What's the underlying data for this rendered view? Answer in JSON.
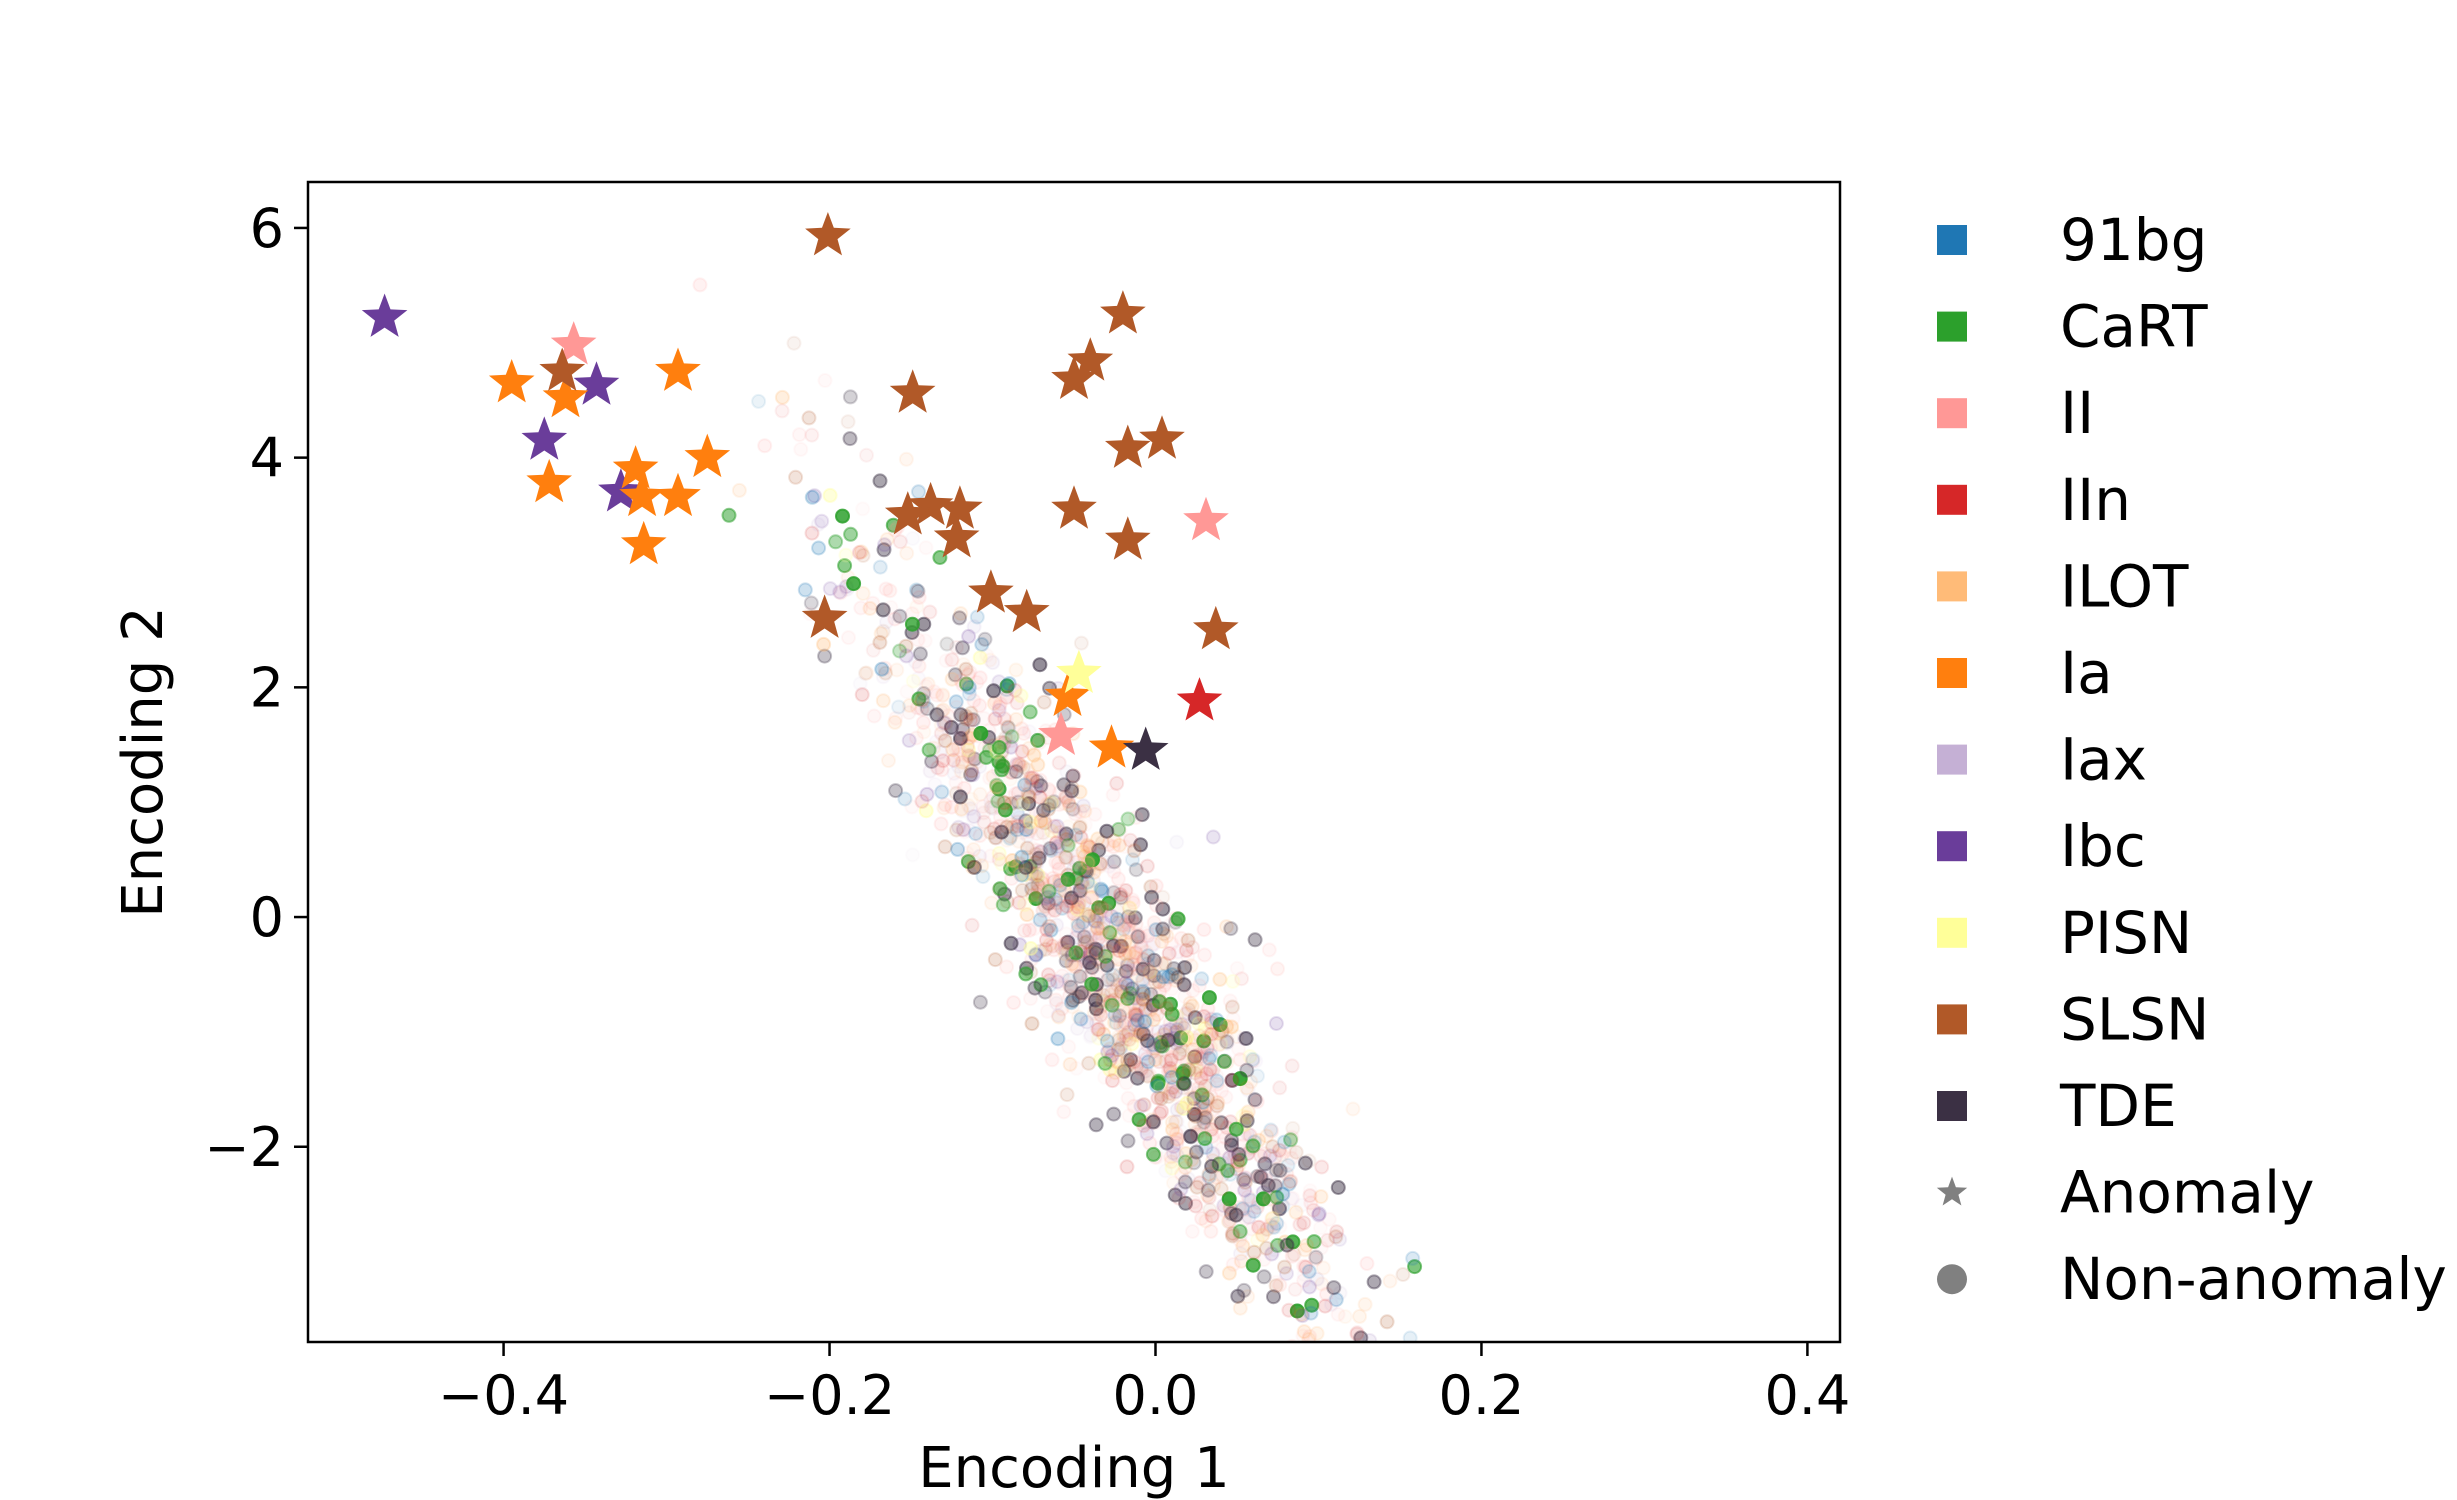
{
  "chart_data": {
    "type": "scatter",
    "title": "",
    "xlabel": "Encoding 1",
    "ylabel": "Encoding 2",
    "xlim": [
      -0.52,
      0.42
    ],
    "ylim": [
      -3.7,
      6.4
    ],
    "xticks": [
      -0.4,
      -0.2,
      0.0,
      0.2,
      0.4
    ],
    "xtick_labels": [
      "−0.4",
      "−0.2",
      "0.0",
      "0.2",
      "0.4"
    ],
    "yticks": [
      -2,
      0,
      2,
      4,
      6
    ],
    "ytick_labels": [
      "−2",
      "0",
      "2",
      "4",
      "6"
    ],
    "grid": false,
    "legend_position": "outside-right",
    "classes": [
      {
        "name": "91bg",
        "color": "#1f77b4"
      },
      {
        "name": "CaRT",
        "color": "#2ca02c"
      },
      {
        "name": "II",
        "color": "#ff9896"
      },
      {
        "name": "IIn",
        "color": "#d62728"
      },
      {
        "name": "ILOT",
        "color": "#ffbb78"
      },
      {
        "name": "Ia",
        "color": "#ff7f0e"
      },
      {
        "name": "Iax",
        "color": "#c5b0d5"
      },
      {
        "name": "Ibc",
        "color": "#6a3d9a"
      },
      {
        "name": "PISN",
        "color": "#ffff99"
      },
      {
        "name": "SLSN",
        "color": "#b15928"
      },
      {
        "name": "TDE",
        "color": "#3b3044"
      }
    ],
    "marker_legend": [
      {
        "name": "Anomaly",
        "marker": "star",
        "color": "#808080"
      },
      {
        "name": "Non-anomaly",
        "marker": "circle",
        "color": "#808080"
      }
    ],
    "anomalies": [
      {
        "class": "Ibc",
        "x": -0.473,
        "y": 5.22
      },
      {
        "class": "Ibc",
        "x": -0.343,
        "y": 4.63
      },
      {
        "class": "Ibc",
        "x": -0.375,
        "y": 4.15
      },
      {
        "class": "Ibc",
        "x": -0.328,
        "y": 3.7
      },
      {
        "class": "II",
        "x": -0.357,
        "y": 4.98
      },
      {
        "class": "II",
        "x": 0.031,
        "y": 3.45
      },
      {
        "class": "II",
        "x": -0.058,
        "y": 1.58
      },
      {
        "class": "Ia",
        "x": -0.395,
        "y": 4.65
      },
      {
        "class": "Ia",
        "x": -0.362,
        "y": 4.52
      },
      {
        "class": "Ia",
        "x": -0.293,
        "y": 4.75
      },
      {
        "class": "Ia",
        "x": -0.275,
        "y": 4.0
      },
      {
        "class": "Ia",
        "x": -0.372,
        "y": 3.78
      },
      {
        "class": "Ia",
        "x": -0.319,
        "y": 3.9
      },
      {
        "class": "Ia",
        "x": -0.315,
        "y": 3.66
      },
      {
        "class": "Ia",
        "x": -0.293,
        "y": 3.66
      },
      {
        "class": "Ia",
        "x": -0.314,
        "y": 3.24
      },
      {
        "class": "Ia",
        "x": -0.054,
        "y": 1.92
      },
      {
        "class": "Ia",
        "x": -0.027,
        "y": 1.47
      },
      {
        "class": "PISN",
        "x": -0.047,
        "y": 2.12
      },
      {
        "class": "SLSN",
        "x": -0.201,
        "y": 5.93
      },
      {
        "class": "SLSN",
        "x": -0.02,
        "y": 5.25
      },
      {
        "class": "SLSN",
        "x": -0.04,
        "y": 4.84
      },
      {
        "class": "SLSN",
        "x": -0.05,
        "y": 4.68
      },
      {
        "class": "SLSN",
        "x": -0.149,
        "y": 4.56
      },
      {
        "class": "SLSN",
        "x": 0.004,
        "y": 4.16
      },
      {
        "class": "SLSN",
        "x": -0.017,
        "y": 4.08
      },
      {
        "class": "SLSN",
        "x": -0.364,
        "y": 4.75
      },
      {
        "class": "SLSN",
        "x": -0.138,
        "y": 3.58
      },
      {
        "class": "SLSN",
        "x": -0.152,
        "y": 3.5
      },
      {
        "class": "SLSN",
        "x": -0.12,
        "y": 3.55
      },
      {
        "class": "SLSN",
        "x": -0.122,
        "y": 3.3
      },
      {
        "class": "SLSN",
        "x": -0.05,
        "y": 3.55
      },
      {
        "class": "SLSN",
        "x": -0.017,
        "y": 3.28
      },
      {
        "class": "SLSN",
        "x": -0.101,
        "y": 2.82
      },
      {
        "class": "SLSN",
        "x": -0.079,
        "y": 2.65
      },
      {
        "class": "SLSN",
        "x": -0.203,
        "y": 2.6
      },
      {
        "class": "SLSN",
        "x": 0.037,
        "y": 2.5
      },
      {
        "class": "IIn",
        "x": 0.027,
        "y": 1.88
      },
      {
        "class": "TDE",
        "x": -0.006,
        "y": 1.45
      }
    ],
    "non_anomaly_cloud": {
      "description": "dense semi-transparent circles along a diagonal band",
      "center": [
        -0.03,
        -0.3
      ],
      "classes_present": [
        "91bg",
        "CaRT",
        "II",
        "IIn",
        "ILOT",
        "Ia",
        "Iax",
        "Ibc",
        "PISN",
        "SLSN",
        "TDE"
      ]
    }
  }
}
